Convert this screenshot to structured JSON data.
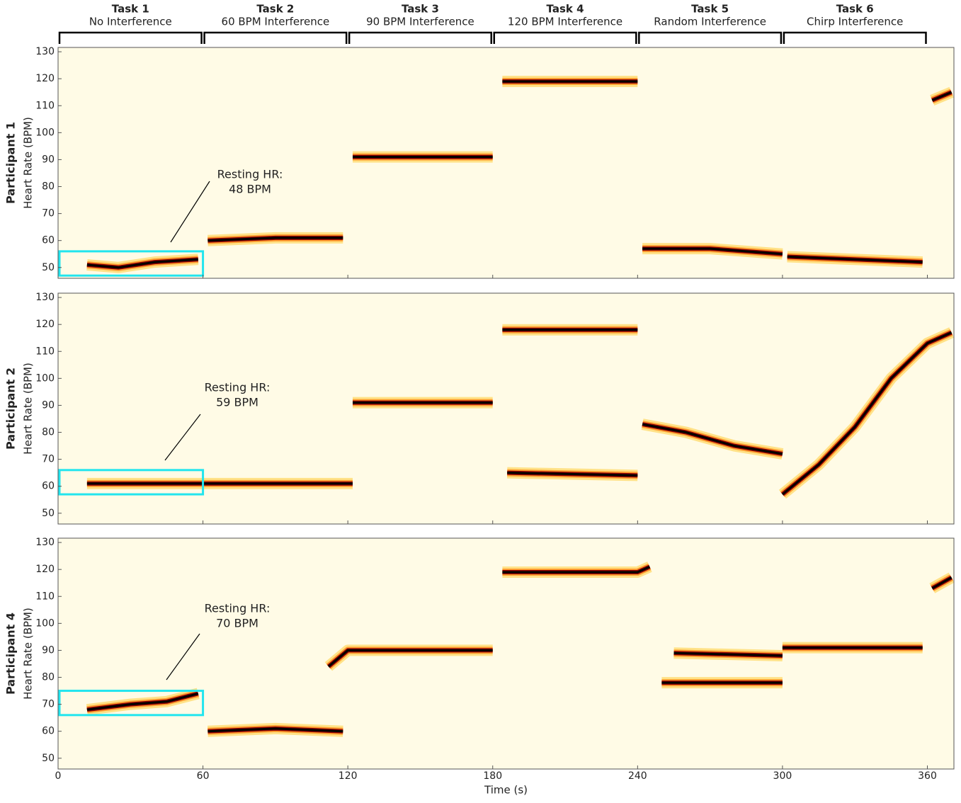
{
  "chart_data": [
    {
      "type": "line",
      "participant": "Participant 1",
      "ylabel": "Heart Rate (BPM)",
      "tasks": [
        {
          "name": "Task 1",
          "label": "No Interference",
          "start": 0,
          "end": 60
        },
        {
          "name": "Task 2",
          "label": "60 BPM Interference",
          "start": 60,
          "end": 120
        },
        {
          "name": "Task 3",
          "label": "90 BPM Interference",
          "start": 120,
          "end": 180
        },
        {
          "name": "Task 4",
          "label": "120 BPM Interference",
          "start": 180,
          "end": 240
        },
        {
          "name": "Task 5",
          "label": "Random Interference",
          "start": 240,
          "end": 300
        },
        {
          "name": "Task 6",
          "label": "Chirp Interference",
          "start": 300,
          "end": 360
        }
      ],
      "xlim": [
        0,
        371
      ],
      "xticks": [
        0,
        60,
        120,
        180,
        240,
        300,
        360
      ],
      "ylim": [
        46,
        131.6
      ],
      "yticks": [
        50,
        60,
        70,
        80,
        90,
        100,
        110,
        120,
        130
      ],
      "series": [
        {
          "color": "#8b0000",
          "x": [
            12,
            25,
            40,
            58,
            59,
            62,
            90,
            118,
            119,
            122,
            180,
            181,
            184,
            240,
            241,
            242,
            270,
            300,
            301,
            302,
            358,
            359,
            362,
            370
          ],
          "values": [
            51,
            50,
            52,
            53,
            null,
            60,
            61,
            61,
            null,
            91,
            91,
            null,
            119,
            119,
            null,
            57,
            57,
            55,
            null,
            54,
            52,
            null,
            112,
            115
          ]
        }
      ],
      "highlight": {
        "x": [
          0,
          60
        ],
        "y": [
          47,
          56
        ],
        "color": "#22e5ee"
      },
      "annotation": [
        "Resting HR:",
        "48 BPM"
      ]
    },
    {
      "type": "line",
      "participant": "Participant 2",
      "ylabel": "Heart Rate (BPM)",
      "xlim": [
        0,
        371
      ],
      "xticks": [
        0,
        60,
        120,
        180,
        240,
        300,
        360
      ],
      "ylim": [
        46,
        131.6
      ],
      "yticks": [
        50,
        60,
        70,
        80,
        90,
        100,
        110,
        120,
        130
      ],
      "series": [
        {
          "color": "#8b0000",
          "x": [
            12,
            60,
            122,
            123,
            122,
            180,
            181,
            184,
            240,
            241,
            186,
            240,
            241,
            242,
            260,
            280,
            300,
            301,
            300,
            315,
            330,
            345,
            360,
            370
          ],
          "values": [
            61,
            61,
            61,
            null,
            91,
            91,
            null,
            118,
            118,
            null,
            65,
            64,
            null,
            83,
            80,
            75,
            72,
            null,
            57,
            68,
            82,
            100,
            113,
            117
          ]
        }
      ],
      "highlight": {
        "x": [
          0,
          60
        ],
        "y": [
          57,
          66
        ],
        "color": "#22e5ee"
      },
      "annotation": [
        "Resting HR:",
        "59 BPM"
      ]
    },
    {
      "type": "line",
      "participant": "Participant 4",
      "ylabel": "Heart Rate (BPM)",
      "xlabel": "Time (s)",
      "xlim": [
        0,
        371
      ],
      "xticks": [
        0,
        60,
        120,
        180,
        240,
        300,
        360
      ],
      "ylim": [
        46,
        131.6
      ],
      "yticks": [
        50,
        60,
        70,
        80,
        90,
        100,
        110,
        120,
        130
      ],
      "series": [
        {
          "color": "#8b0000",
          "x": [
            12,
            30,
            45,
            58,
            59,
            62,
            90,
            118,
            119,
            112,
            120,
            180,
            181,
            184,
            240,
            245,
            246,
            250,
            300,
            301,
            255,
            300,
            301,
            300,
            358,
            359,
            362,
            370
          ],
          "values": [
            68,
            70,
            71,
            74,
            null,
            60,
            61,
            60,
            null,
            84,
            90,
            90,
            null,
            119,
            119,
            121,
            null,
            78,
            78,
            null,
            89,
            88,
            null,
            91,
            91,
            null,
            113,
            117
          ]
        }
      ],
      "highlight": {
        "x": [
          0,
          60
        ],
        "y": [
          66,
          75
        ],
        "color": "#22e5ee"
      },
      "annotation": [
        "Resting HR:",
        "70 BPM"
      ]
    }
  ]
}
